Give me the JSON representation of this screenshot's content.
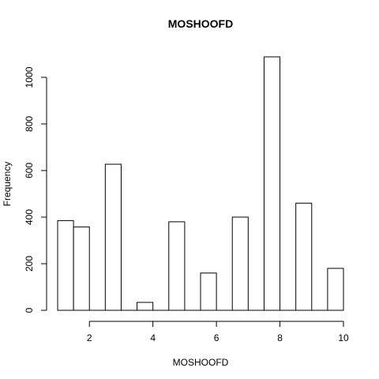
{
  "chart_data": {
    "type": "bar",
    "title": "MOSHOOFD",
    "xlabel": "MOSHOOFD",
    "ylabel": "Frequency",
    "bins": [
      {
        "x0": 1.0,
        "x1": 1.5,
        "count": 385
      },
      {
        "x0": 1.5,
        "x1": 2.0,
        "count": 358
      },
      {
        "x0": 2.0,
        "x1": 2.5,
        "count": 0
      },
      {
        "x0": 2.5,
        "x1": 3.0,
        "count": 627
      },
      {
        "x0": 3.0,
        "x1": 3.5,
        "count": 0
      },
      {
        "x0": 3.5,
        "x1": 4.0,
        "count": 34
      },
      {
        "x0": 4.0,
        "x1": 4.5,
        "count": 0
      },
      {
        "x0": 4.5,
        "x1": 5.0,
        "count": 380
      },
      {
        "x0": 5.0,
        "x1": 5.5,
        "count": 0
      },
      {
        "x0": 5.5,
        "x1": 6.0,
        "count": 160
      },
      {
        "x0": 6.0,
        "x1": 6.5,
        "count": 0
      },
      {
        "x0": 6.5,
        "x1": 7.0,
        "count": 400
      },
      {
        "x0": 7.0,
        "x1": 7.5,
        "count": 0
      },
      {
        "x0": 7.5,
        "x1": 8.0,
        "count": 1088
      },
      {
        "x0": 8.0,
        "x1": 8.5,
        "count": 0
      },
      {
        "x0": 8.5,
        "x1": 9.0,
        "count": 460
      },
      {
        "x0": 9.0,
        "x1": 9.5,
        "count": 0
      },
      {
        "x0": 9.5,
        "x1": 10.0,
        "count": 180
      }
    ],
    "xlim": [
      1,
      10
    ],
    "ylim": [
      0,
      1088
    ],
    "x_ticks": [
      2,
      4,
      6,
      8,
      10
    ],
    "y_ticks": [
      0,
      200,
      400,
      600,
      800,
      1000
    ],
    "grid": false
  }
}
